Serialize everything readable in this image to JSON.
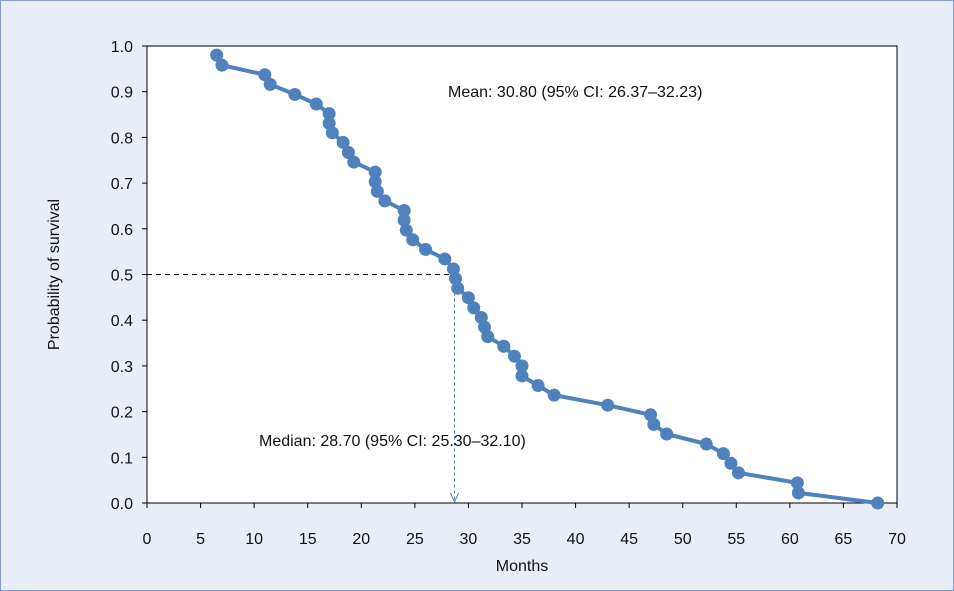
{
  "chart_data": {
    "type": "line",
    "xlabel": "Months",
    "ylabel": "Probability of survival",
    "xlim": [
      0,
      70
    ],
    "ylim": [
      0,
      1
    ],
    "x_ticks": [
      0,
      5,
      10,
      15,
      20,
      25,
      30,
      35,
      40,
      45,
      50,
      55,
      60,
      65,
      70
    ],
    "y_ticks": [
      "0.0",
      "0.1",
      "0.2",
      "0.3",
      "0.4",
      "0.5",
      "0.6",
      "0.7",
      "0.8",
      "0.9",
      "1.0"
    ],
    "grid": false,
    "legend": "none",
    "series_color": "#4f81bd",
    "annotations": {
      "mean": "Mean: 30.80 (95% CI: 26.37–32.23)",
      "median": "Median: 28.70 (95% CI: 25.30–32.10)",
      "median_point": [
        28.7,
        0.5
      ]
    },
    "series": [
      {
        "points": [
          [
            6.5,
            0.98
          ],
          [
            7.0,
            0.958
          ],
          [
            11.0,
            0.937
          ],
          [
            11.5,
            0.916
          ],
          [
            13.8,
            0.894
          ],
          [
            15.8,
            0.873
          ],
          [
            17.0,
            0.852
          ],
          [
            17.0,
            0.831
          ],
          [
            17.3,
            0.81
          ],
          [
            18.3,
            0.789
          ],
          [
            18.8,
            0.767
          ],
          [
            19.3,
            0.746
          ],
          [
            21.3,
            0.724
          ],
          [
            21.3,
            0.703
          ],
          [
            21.5,
            0.682
          ],
          [
            22.2,
            0.661
          ],
          [
            24.0,
            0.64
          ],
          [
            24.0,
            0.619
          ],
          [
            24.2,
            0.597
          ],
          [
            24.8,
            0.576
          ],
          [
            26.0,
            0.555
          ],
          [
            27.8,
            0.534
          ],
          [
            28.6,
            0.512
          ],
          [
            28.8,
            0.491
          ],
          [
            29.0,
            0.47
          ],
          [
            30.0,
            0.449
          ],
          [
            30.5,
            0.427
          ],
          [
            31.2,
            0.406
          ],
          [
            31.5,
            0.385
          ],
          [
            31.8,
            0.364
          ],
          [
            33.3,
            0.343
          ],
          [
            34.3,
            0.321
          ],
          [
            35.0,
            0.3
          ],
          [
            35.0,
            0.278
          ],
          [
            36.5,
            0.257
          ],
          [
            38.0,
            0.236
          ],
          [
            43.0,
            0.214
          ],
          [
            47.0,
            0.193
          ],
          [
            47.3,
            0.172
          ],
          [
            48.5,
            0.151
          ],
          [
            52.2,
            0.129
          ],
          [
            53.8,
            0.108
          ],
          [
            54.5,
            0.087
          ],
          [
            55.2,
            0.066
          ],
          [
            60.7,
            0.044
          ],
          [
            60.8,
            0.022
          ],
          [
            68.2,
            0.0
          ]
        ]
      }
    ]
  }
}
